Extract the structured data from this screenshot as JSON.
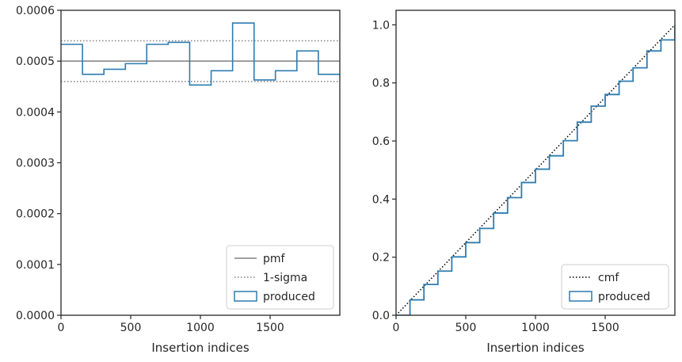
{
  "chart_data": [
    {
      "type": "line",
      "xlabel": "Insertion indices",
      "ylabel": "",
      "xlim": [
        0,
        2000
      ],
      "ylim": [
        0,
        0.0006
      ],
      "xticks": [
        0,
        500,
        1000,
        1500
      ],
      "xtick_labels": [
        "0",
        "500",
        "1000",
        "1500"
      ],
      "yticks": [
        0,
        0.0001,
        0.0002,
        0.0003,
        0.0004,
        0.0005,
        0.0006
      ],
      "ytick_labels": [
        "0.0000",
        "0.0001",
        "0.0002",
        "0.0003",
        "0.0004",
        "0.0005",
        "0.0006"
      ],
      "legend_position": "lower-right",
      "pmf": 0.0005,
      "sigma_band": [
        0.00046,
        0.00054
      ],
      "produced_histogram": {
        "bin_edges": [
          0,
          154,
          308,
          462,
          615,
          769,
          923,
          1077,
          1231,
          1385,
          1538,
          1692,
          1846,
          2000
        ],
        "values": [
          0.000533,
          0.000474,
          0.000484,
          0.000495,
          0.000533,
          0.000537,
          0.000453,
          0.000481,
          0.000575,
          0.000463,
          0.000481,
          0.00052,
          0.000474
        ]
      },
      "series": [
        {
          "name": "pmf",
          "color": "#808080",
          "style": "solid"
        },
        {
          "name": "1-sigma",
          "color": "#808080",
          "style": "dotted"
        },
        {
          "name": "produced",
          "color": "#2e7cb0",
          "style": "step"
        }
      ]
    },
    {
      "type": "line",
      "xlabel": "Insertion indices",
      "ylabel": "",
      "xlim": [
        0,
        2000
      ],
      "ylim": [
        0,
        1.05
      ],
      "xticks": [
        0,
        500,
        1000,
        1500
      ],
      "xtick_labels": [
        "0",
        "500",
        "1000",
        "1500"
      ],
      "yticks": [
        0,
        0.2,
        0.4,
        0.6,
        0.8,
        1.0
      ],
      "ytick_labels": [
        "0.0",
        "0.2",
        "0.4",
        "0.6",
        "0.8",
        "1.0"
      ],
      "legend_position": "lower-right",
      "series": [
        {
          "name": "cmf",
          "color": "#000000",
          "style": "dotted",
          "x": [
            0,
            2000
          ],
          "y": [
            0,
            1.0
          ]
        },
        {
          "name": "produced",
          "color": "#2e7cb0",
          "style": "step",
          "x": [
            0,
            100,
            200,
            300,
            400,
            500,
            600,
            700,
            800,
            900,
            1000,
            1100,
            1200,
            1300,
            1400,
            1500,
            1600,
            1700,
            1800,
            1900,
            2000
          ],
          "y": [
            0,
            0.053,
            0.106,
            0.152,
            0.201,
            0.25,
            0.299,
            0.352,
            0.405,
            0.457,
            0.503,
            0.549,
            0.601,
            0.665,
            0.72,
            0.76,
            0.806,
            0.852,
            0.91,
            0.948,
            1.0
          ]
        }
      ]
    }
  ]
}
